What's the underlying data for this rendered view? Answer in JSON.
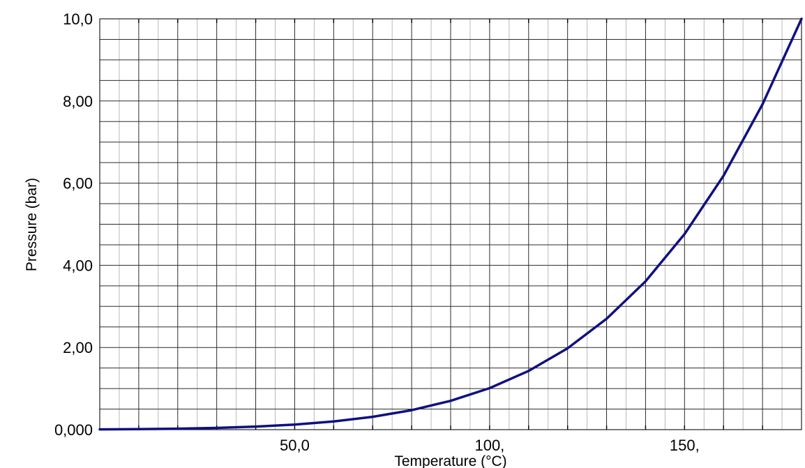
{
  "chart_data": {
    "type": "line",
    "title": "",
    "xlabel": "Temperature (°C)",
    "ylabel": "Pressure (bar)",
    "xlim": [
      0,
      180
    ],
    "ylim": [
      0,
      10
    ],
    "x_ticks": [
      {
        "value": 50,
        "label": "50,0"
      },
      {
        "value": 100,
        "label": "100,"
      },
      {
        "value": 150,
        "label": "150,"
      }
    ],
    "y_ticks": [
      {
        "value": 0,
        "label": "0,000"
      },
      {
        "value": 2,
        "label": "2,00"
      },
      {
        "value": 4,
        "label": "4,00"
      },
      {
        "value": 6,
        "label": "6,00"
      },
      {
        "value": 8,
        "label": "8,00"
      },
      {
        "value": 10,
        "label": "10,0"
      }
    ],
    "grid": true,
    "colors": {
      "series": "#101080"
    },
    "series": [
      {
        "x": [
          0,
          10,
          20,
          30,
          40,
          50,
          60,
          70,
          80,
          90,
          100,
          110,
          120,
          130,
          140,
          150,
          160,
          170,
          180
        ],
        "y": [
          0.006,
          0.012,
          0.023,
          0.042,
          0.074,
          0.123,
          0.199,
          0.312,
          0.474,
          0.701,
          1.01,
          1.43,
          1.98,
          2.7,
          3.61,
          4.76,
          6.18,
          7.92,
          10.0
        ]
      }
    ]
  }
}
